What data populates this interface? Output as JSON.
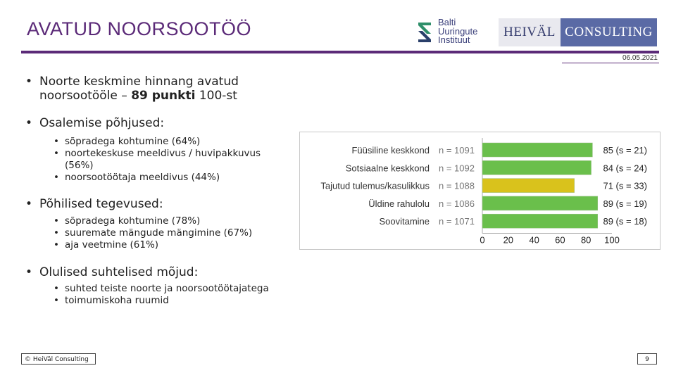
{
  "header": {
    "title": "AVATUD NOORSOOTÖÖ",
    "date": "06.05.2021",
    "logo_balti": [
      "Balti",
      "Uuringute",
      "Instituut"
    ],
    "logo_heival": "HEIVÄL",
    "logo_consulting": "CONSULTING",
    "accent_color": "#5b2a78"
  },
  "bullets": {
    "b1_line1": "Noorte keskmine hinnang avatud",
    "b1_line2_pre": "noorsootööle – ",
    "b1_line2_bold": "89 punkti",
    "b1_line2_post": " 100-st",
    "b2": "Osalemise põhjused:",
    "b2_items": [
      "sõpradega kohtumine (64%)",
      "noortekeskuse meeldivus / huvipakkuvus",
      "(56%)",
      "noorsootöötaja meeldivus (44%)"
    ],
    "b3": "Põhilised tegevused:",
    "b3_items": [
      "sõpradega kohtumine (78%)",
      "suuremate mängude mängimine (67%)",
      "aja veetmine (61%)"
    ],
    "b4": "Olulised suhtelised mõjud:",
    "b4_items": [
      "suhted teiste noorte ja noorsootöötajatega",
      "toimumiskoha ruumid"
    ]
  },
  "chart_data": {
    "type": "bar",
    "orientation": "horizontal",
    "categories": [
      "Füüsiline keskkond",
      "Sotsiaalne keskkond",
      "Tajutud tulemus/kasulikkus",
      "Üldine rahulolu",
      "Soovitamine"
    ],
    "n_labels": [
      "n = 1091",
      "n = 1092",
      "n = 1088",
      "n = 1086",
      "n = 1071"
    ],
    "values": [
      85,
      84,
      71,
      89,
      89
    ],
    "value_labels": [
      "85 (s = 21)",
      "84 (s = 24)",
      "71 (s = 33)",
      "89 (s = 19)",
      "89 (s = 18)"
    ],
    "bar_colors": [
      "#6abf4b",
      "#6abf4b",
      "#d9c21c",
      "#6abf4b",
      "#6abf4b"
    ],
    "xlim": [
      0,
      100
    ],
    "xticks": [
      "0",
      "20",
      "40",
      "60",
      "80",
      "100"
    ]
  },
  "footer": {
    "copyright": "© HeiVäl Consulting",
    "page": "9"
  }
}
